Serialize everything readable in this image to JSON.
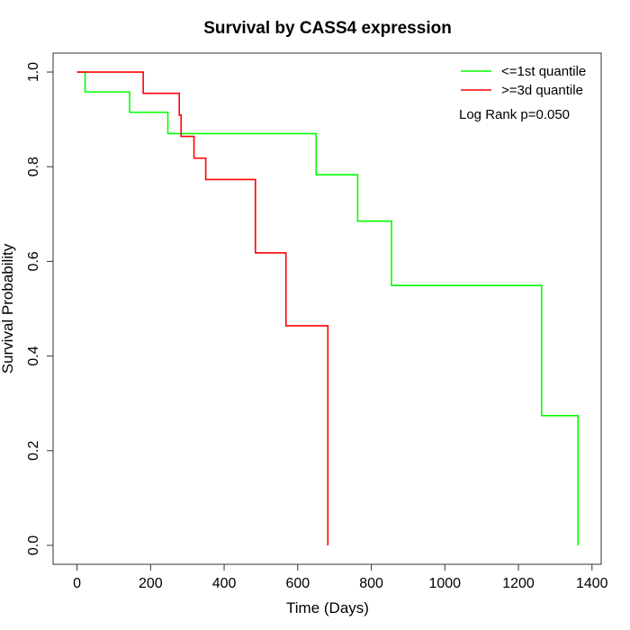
{
  "chart_data": {
    "type": "line",
    "subtype": "kaplan-meier step",
    "title": "Survival by CASS4 expression",
    "xlabel": "Time (Days)",
    "ylabel": "Survival Probability",
    "xlim": [
      -65,
      1425
    ],
    "ylim": [
      -0.04,
      1.04
    ],
    "xticks": [
      0,
      200,
      400,
      600,
      800,
      1000,
      1200,
      1400
    ],
    "yticks": [
      0.0,
      0.2,
      0.4,
      0.6,
      0.8,
      1.0
    ],
    "xtick_labels": [
      "0",
      "200",
      "400",
      "600",
      "800",
      "1000",
      "1200",
      "1400"
    ],
    "ytick_labels": [
      "0.0",
      "0.2",
      "0.4",
      "0.6",
      "0.8",
      "1.0"
    ],
    "grid": false,
    "legend_position": "top-right",
    "annotation": "Log Rank p=0.050",
    "series": [
      {
        "name": "<=1st quantile",
        "color": "#00ff00",
        "x": [
          0,
          22,
          143,
          247,
          650,
          763,
          855,
          1263,
          1362
        ],
        "y": [
          1.0,
          0.958,
          0.915,
          0.87,
          0.783,
          0.685,
          0.549,
          0.274,
          0.0
        ]
      },
      {
        "name": ">=3d quantile",
        "color": "#ff0000",
        "x": [
          0,
          180,
          278,
          283,
          318,
          350,
          485,
          568,
          682
        ],
        "y": [
          1.0,
          0.955,
          0.909,
          0.864,
          0.818,
          0.773,
          0.618,
          0.464,
          0.0
        ]
      }
    ]
  }
}
